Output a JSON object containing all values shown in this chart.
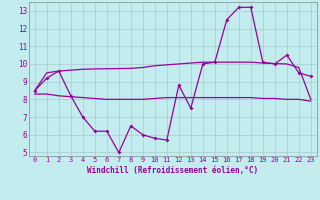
{
  "xlabel": "Windchill (Refroidissement éolien,°C)",
  "ylabel": "",
  "xlim": [
    -0.5,
    23.5
  ],
  "ylim": [
    4.8,
    13.5
  ],
  "yticks": [
    5,
    6,
    7,
    8,
    9,
    10,
    11,
    12,
    13
  ],
  "xticks": [
    0,
    1,
    2,
    3,
    4,
    5,
    6,
    7,
    8,
    9,
    10,
    11,
    12,
    13,
    14,
    15,
    16,
    17,
    18,
    19,
    20,
    21,
    22,
    23
  ],
  "background_color": "#c2ecee",
  "grid_color": "#aacccc",
  "line_color": "#990099",
  "line1_x": [
    0,
    1,
    2,
    3,
    4,
    5,
    6,
    7,
    8,
    9,
    10,
    11,
    12,
    13,
    14,
    15,
    16,
    17,
    18,
    19,
    20,
    21,
    22,
    23
  ],
  "line1_y": [
    8.5,
    9.2,
    9.6,
    8.2,
    7.0,
    6.2,
    6.2,
    5.0,
    6.5,
    6.0,
    5.8,
    5.7,
    8.8,
    7.5,
    10.0,
    10.1,
    12.5,
    13.2,
    13.2,
    10.1,
    10.0,
    10.5,
    9.5,
    9.3
  ],
  "line2_x": [
    0,
    1,
    2,
    3,
    4,
    5,
    6,
    7,
    8,
    9,
    10,
    11,
    12,
    13,
    14,
    15,
    16,
    17,
    18,
    19,
    20,
    21,
    22,
    23
  ],
  "line2_y": [
    8.5,
    9.5,
    9.6,
    9.65,
    9.7,
    9.72,
    9.73,
    9.74,
    9.75,
    9.8,
    9.9,
    9.95,
    10.0,
    10.05,
    10.1,
    10.1,
    10.1,
    10.1,
    10.1,
    10.05,
    10.02,
    10.0,
    9.8,
    8.0
  ],
  "line3_x": [
    0,
    1,
    2,
    3,
    4,
    5,
    6,
    7,
    8,
    9,
    10,
    11,
    12,
    13,
    14,
    15,
    16,
    17,
    18,
    19,
    20,
    21,
    22,
    23
  ],
  "line3_y": [
    8.3,
    8.3,
    8.2,
    8.15,
    8.1,
    8.05,
    8.0,
    8.0,
    8.0,
    8.0,
    8.05,
    8.1,
    8.1,
    8.1,
    8.1,
    8.1,
    8.1,
    8.1,
    8.1,
    8.05,
    8.05,
    8.0,
    8.0,
    7.9
  ]
}
